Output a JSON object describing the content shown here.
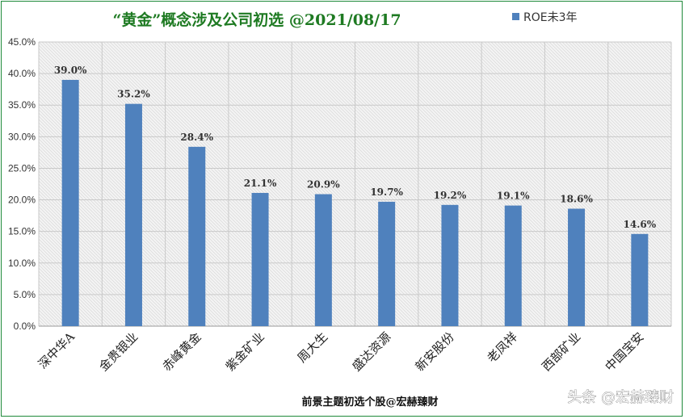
{
  "chart_data": {
    "type": "bar",
    "title": "“黄金”概念涉及公司初选  @2021/08/17",
    "series": [
      {
        "name": "ROE未3年",
        "color": "#4f81bd",
        "values": [
          39.0,
          35.2,
          28.4,
          21.1,
          20.9,
          19.7,
          19.2,
          19.1,
          18.6,
          14.6
        ]
      }
    ],
    "categories": [
      "深中华A",
      "金贵银业",
      "赤峰黄金",
      "紫金矿业",
      "周大生",
      "盛达资源",
      "新安股份",
      "老凤祥",
      "西部矿业",
      "中国宝安"
    ],
    "data_labels": [
      "39.0%",
      "35.2%",
      "28.4%",
      "21.1%",
      "20.9%",
      "19.7%",
      "19.2%",
      "19.1%",
      "18.6%",
      "14.6%"
    ],
    "y_ticks": [
      "0.0%",
      "5.0%",
      "10.0%",
      "15.0%",
      "20.0%",
      "25.0%",
      "30.0%",
      "35.0%",
      "40.0%",
      "45.0%"
    ],
    "ylim": [
      0,
      45
    ],
    "grid": true,
    "legend_position": "top-right"
  },
  "footer": "前景主题初选个股@宏赫臻财",
  "watermark": "头条 @宏赫臻财"
}
